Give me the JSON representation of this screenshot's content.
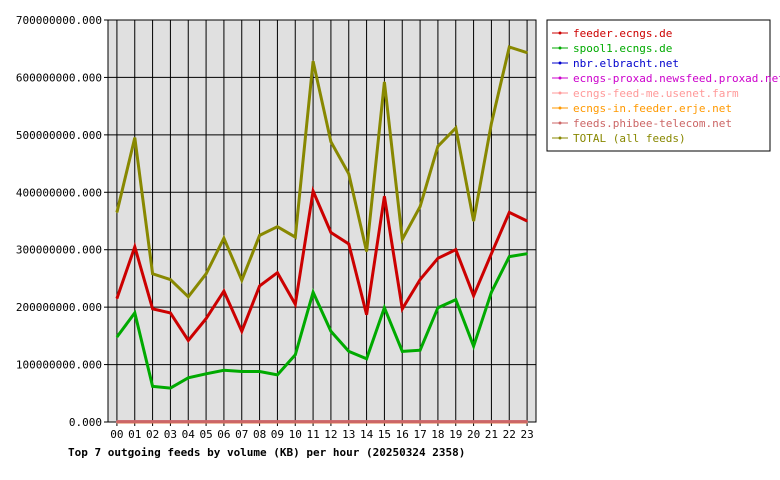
{
  "chart_data": {
    "type": "line",
    "title": "Top 7 outgoing feeds by volume (KB) per hour (20250324 2358)",
    "xlabel": "",
    "ylabel": "",
    "ylim": [
      0,
      700000000
    ],
    "y_ticks": [
      0,
      100000000,
      200000000,
      300000000,
      400000000,
      500000000,
      600000000,
      700000000
    ],
    "y_tick_labels": [
      "0.000",
      "100000000.000",
      "200000000.000",
      "300000000.000",
      "400000000.000",
      "500000000.000",
      "600000000.000",
      "700000000.000"
    ],
    "x": [
      "00",
      "01",
      "02",
      "03",
      "04",
      "05",
      "06",
      "07",
      "08",
      "09",
      "10",
      "11",
      "12",
      "13",
      "14",
      "15",
      "16",
      "17",
      "18",
      "19",
      "20",
      "21",
      "22",
      "23"
    ],
    "grid": true,
    "legend_position": "right",
    "series": [
      {
        "name": "feeder.ecngs.de",
        "color": "#cc0000",
        "values": [
          215000000,
          305000000,
          197000000,
          190000000,
          142000000,
          180000000,
          228000000,
          158000000,
          237000000,
          260000000,
          205000000,
          402000000,
          330000000,
          310000000,
          187000000,
          393000000,
          197000000,
          248000000,
          285000000,
          300000000,
          220000000,
          293000000,
          365000000,
          350000000
        ]
      },
      {
        "name": "spool1.ecngs.de",
        "color": "#00aa00",
        "values": [
          148000000,
          190000000,
          62000000,
          59000000,
          77000000,
          84000000,
          90000000,
          88000000,
          88000000,
          82000000,
          117000000,
          226000000,
          158000000,
          123000000,
          110000000,
          199000000,
          123000000,
          125000000,
          199000000,
          213000000,
          132000000,
          226000000,
          288000000,
          293000000
        ]
      },
      {
        "name": "nbr.elbracht.net",
        "color": "#0000cc",
        "values": [
          200000,
          200000,
          200000,
          200000,
          200000,
          200000,
          200000,
          200000,
          200000,
          200000,
          200000,
          200000,
          200000,
          200000,
          200000,
          200000,
          200000,
          200000,
          200000,
          200000,
          200000,
          200000,
          200000,
          200000
        ]
      },
      {
        "name": "ecngs-proxad.newsfeed.proxad.net",
        "color": "#cc00cc",
        "values": [
          200000,
          200000,
          200000,
          200000,
          200000,
          200000,
          200000,
          200000,
          200000,
          200000,
          200000,
          200000,
          200000,
          200000,
          200000,
          200000,
          200000,
          200000,
          200000,
          200000,
          200000,
          200000,
          200000,
          200000
        ]
      },
      {
        "name": "ecngs-feed-me.usenet.farm",
        "color": "#ff9999",
        "values": [
          200000,
          200000,
          200000,
          200000,
          200000,
          200000,
          200000,
          200000,
          200000,
          200000,
          200000,
          200000,
          200000,
          200000,
          200000,
          200000,
          200000,
          200000,
          200000,
          200000,
          200000,
          200000,
          200000,
          200000
        ]
      },
      {
        "name": "ecngs-in.feeder.erje.net",
        "color": "#ff9900",
        "values": [
          200000,
          200000,
          200000,
          200000,
          200000,
          200000,
          200000,
          200000,
          200000,
          200000,
          200000,
          200000,
          200000,
          200000,
          200000,
          200000,
          200000,
          200000,
          200000,
          200000,
          200000,
          200000,
          200000,
          200000
        ]
      },
      {
        "name": "feeds.phibee-telecom.net",
        "color": "#cc6666",
        "values": [
          500000,
          500000,
          500000,
          500000,
          500000,
          500000,
          500000,
          500000,
          500000,
          500000,
          500000,
          500000,
          500000,
          500000,
          500000,
          500000,
          500000,
          500000,
          500000,
          500000,
          500000,
          500000,
          500000,
          500000
        ]
      },
      {
        "name": "TOTAL (all feeds)",
        "color": "#888800",
        "values": [
          365000000,
          495000000,
          258000000,
          248000000,
          218000000,
          258000000,
          320000000,
          247000000,
          325000000,
          340000000,
          322000000,
          628000000,
          488000000,
          432000000,
          297000000,
          592000000,
          318000000,
          375000000,
          480000000,
          512000000,
          350000000,
          520000000,
          653000000,
          643000000
        ]
      }
    ]
  }
}
